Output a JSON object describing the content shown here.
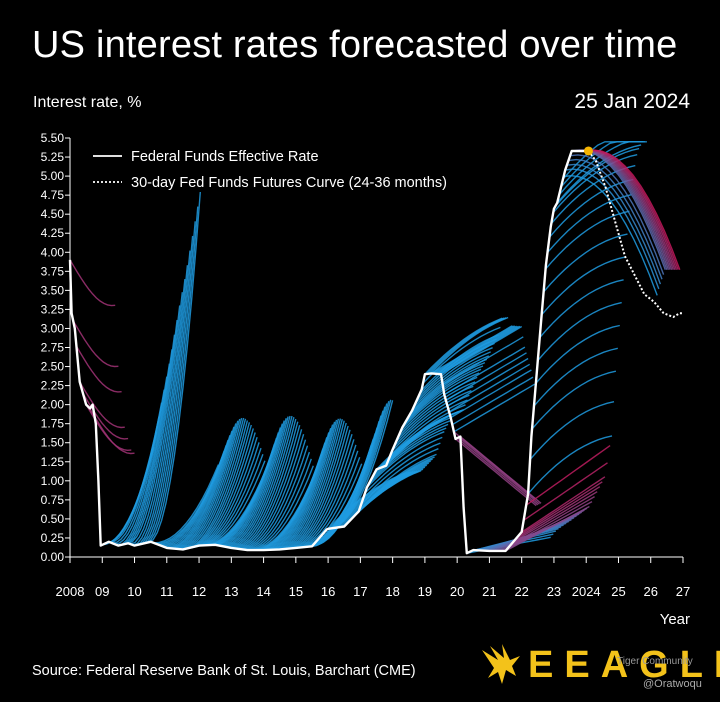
{
  "header": {
    "title": "US interest rates forecasted over time",
    "ylabel": "Interest rate, %",
    "date": "25 Jan 2024"
  },
  "footer": {
    "source": "Source: Federal Reserve Bank of St. Louis, Barchart (CME)",
    "brand": "EEAGLI",
    "watermark_top": "Tiger Community",
    "watermark_bottom": "@Oratwoqu"
  },
  "colors": {
    "background": "#000000",
    "effective_rate": "#ffffff",
    "futures_current": "#ffffff",
    "forecast_blue": "#1f9be0",
    "forecast_magenta": "#c2185b",
    "current_marker": "#f5b400",
    "brand": "#f3c21a"
  },
  "chart_data": {
    "type": "line",
    "title": "US interest rates forecasted over time",
    "ylabel": "Interest rate, %",
    "xlabel": "Year",
    "xlim": [
      2008,
      2027
    ],
    "ylim": [
      0,
      5.5
    ],
    "y_ticks": [
      "0.00",
      "0.25",
      "0.50",
      "0.75",
      "1.00",
      "1.25",
      "1.50",
      "1.75",
      "2.00",
      "2.25",
      "2.50",
      "2.75",
      "3.00",
      "3.25",
      "3.50",
      "3.75",
      "4.00",
      "4.25",
      "4.50",
      "4.75",
      "5.00",
      "5.25",
      "5.50"
    ],
    "x_ticks": [
      {
        "x": 2008,
        "label": "2008"
      },
      {
        "x": 2009,
        "label": "09"
      },
      {
        "x": 2010,
        "label": "10"
      },
      {
        "x": 2011,
        "label": "11"
      },
      {
        "x": 2012,
        "label": "12"
      },
      {
        "x": 2013,
        "label": "13"
      },
      {
        "x": 2014,
        "label": "14"
      },
      {
        "x": 2015,
        "label": "15"
      },
      {
        "x": 2016,
        "label": "16"
      },
      {
        "x": 2017,
        "label": "17"
      },
      {
        "x": 2018,
        "label": "18"
      },
      {
        "x": 2019,
        "label": "19"
      },
      {
        "x": 2020,
        "label": "20"
      },
      {
        "x": 2021,
        "label": "21"
      },
      {
        "x": 2022,
        "label": "22"
      },
      {
        "x": 2023,
        "label": "23"
      },
      {
        "x": 2024,
        "label": "2024"
      },
      {
        "x": 2025,
        "label": "25"
      },
      {
        "x": 2026,
        "label": "26"
      },
      {
        "x": 2027,
        "label": "27"
      }
    ],
    "grid": false,
    "legend": [
      {
        "label": "Federal Funds Effective Rate",
        "style": "solid"
      },
      {
        "label": "30-day Fed Funds Futures Curve (24-36 months)",
        "style": "dotted"
      }
    ],
    "legend_position": "top-left",
    "series": [
      {
        "name": "Federal Funds Effective Rate",
        "x": [
          2008.0,
          2008.05,
          2008.15,
          2008.3,
          2008.5,
          2008.62,
          2008.7,
          2008.8,
          2008.88,
          2008.95,
          2009.2,
          2009.5,
          2009.8,
          2010.0,
          2010.5,
          2011.0,
          2011.5,
          2012.0,
          2012.5,
          2013.0,
          2013.5,
          2014.0,
          2014.5,
          2015.0,
          2015.5,
          2015.95,
          2016.0,
          2016.5,
          2016.95,
          2017.2,
          2017.5,
          2017.8,
          2018.0,
          2018.3,
          2018.6,
          2018.9,
          2019.0,
          2019.2,
          2019.5,
          2019.6,
          2019.8,
          2019.95,
          2020.1,
          2020.2,
          2020.3,
          2020.5,
          2021.0,
          2021.5,
          2022.0,
          2022.2,
          2022.3,
          2022.45,
          2022.6,
          2022.75,
          2022.9,
          2023.0,
          2023.1,
          2023.35,
          2023.55,
          2024.0,
          2024.07
        ],
        "y": [
          3.9,
          3.2,
          3.0,
          2.3,
          2.0,
          1.95,
          2.0,
          1.75,
          1.0,
          0.15,
          0.2,
          0.15,
          0.18,
          0.15,
          0.2,
          0.12,
          0.1,
          0.15,
          0.16,
          0.12,
          0.09,
          0.09,
          0.1,
          0.12,
          0.14,
          0.36,
          0.37,
          0.4,
          0.6,
          0.91,
          1.15,
          1.2,
          1.41,
          1.7,
          1.92,
          2.2,
          2.4,
          2.41,
          2.4,
          2.13,
          1.83,
          1.55,
          1.58,
          0.65,
          0.05,
          0.09,
          0.08,
          0.08,
          0.33,
          0.83,
          1.58,
          2.33,
          3.08,
          3.83,
          4.33,
          4.57,
          4.65,
          5.08,
          5.33,
          5.33,
          5.33
        ]
      },
      {
        "name": "30-day Fed Funds Futures Curve (24-36 months)",
        "x": [
          2024.07,
          2024.3,
          2024.6,
          2024.9,
          2025.2,
          2025.5,
          2025.8,
          2026.1,
          2026.4,
          2026.7,
          2026.9,
          2027.0
        ],
        "y": [
          5.33,
          5.2,
          4.85,
          4.4,
          3.95,
          3.7,
          3.45,
          3.35,
          3.2,
          3.15,
          3.2,
          3.2
        ]
      }
    ],
    "current_point": {
      "x": 2024.07,
      "y": 5.33
    }
  }
}
